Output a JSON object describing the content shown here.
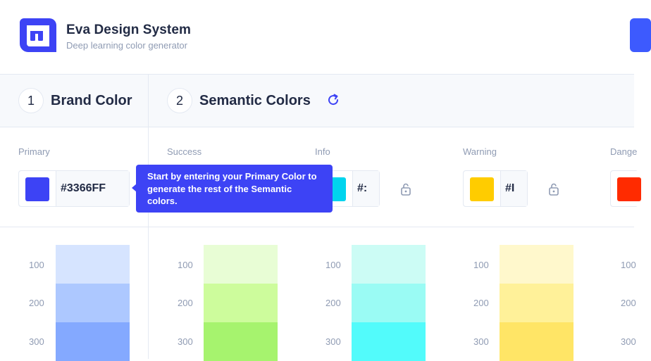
{
  "header": {
    "title": "Eva Design System",
    "subtitle": "Deep learning color generator",
    "logo_icon": "eva-logo-icon",
    "accent": "#3d5afe"
  },
  "steps": [
    {
      "number": "1",
      "label": "Brand Color"
    },
    {
      "number": "2",
      "label": "Semantic Colors"
    }
  ],
  "refresh_icon": "refresh-icon",
  "columns": [
    {
      "label": "Primary",
      "hex": "#3366FF",
      "swatch": "#3d43f5",
      "shades": [
        "#d6e4ff",
        "#adc8ff",
        "#84a9ff"
      ]
    },
    {
      "label": "Success",
      "hex": "",
      "swatch": "#8ae639",
      "shades": [
        "#e8fdd5",
        "#cdfc9c",
        "#a6f36e"
      ]
    },
    {
      "label": "Info",
      "hex": "#:",
      "swatch": "#00d4ee",
      "shades": [
        "#ccfcf5",
        "#9afbf4",
        "#52fbfb"
      ]
    },
    {
      "label": "Warning",
      "hex": "#I",
      "swatch": "#ffcc00",
      "shades": [
        "#fff8cc",
        "#fff199",
        "#ffe566"
      ]
    },
    {
      "label": "Dange",
      "hex": "",
      "swatch": "#ff2b00",
      "shades": []
    }
  ],
  "shade_levels": [
    "100",
    "200",
    "300"
  ],
  "danger_shade_levels": [
    "100",
    "200",
    "300"
  ],
  "tooltip": {
    "text": "Start by entering your Primary Color to generate the rest of the Semantic colors."
  }
}
